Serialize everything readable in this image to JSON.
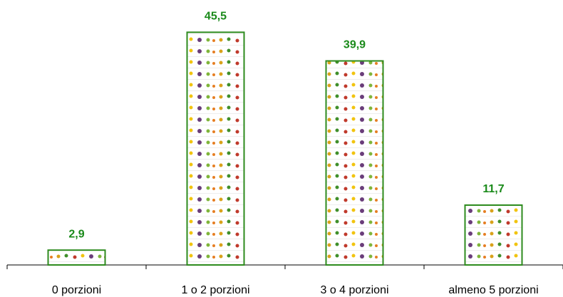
{
  "chart_data": {
    "type": "bar",
    "categories": [
      "0 porzioni",
      "1 o 2 porzioni",
      "3 o 4 porzioni",
      "almeno 5 porzioni"
    ],
    "values": [
      2.9,
      45.5,
      39.9,
      11.7
    ],
    "value_labels": [
      "2,9",
      "45,5",
      "39,9",
      "11,7"
    ],
    "color": "#2e8b1e"
  }
}
